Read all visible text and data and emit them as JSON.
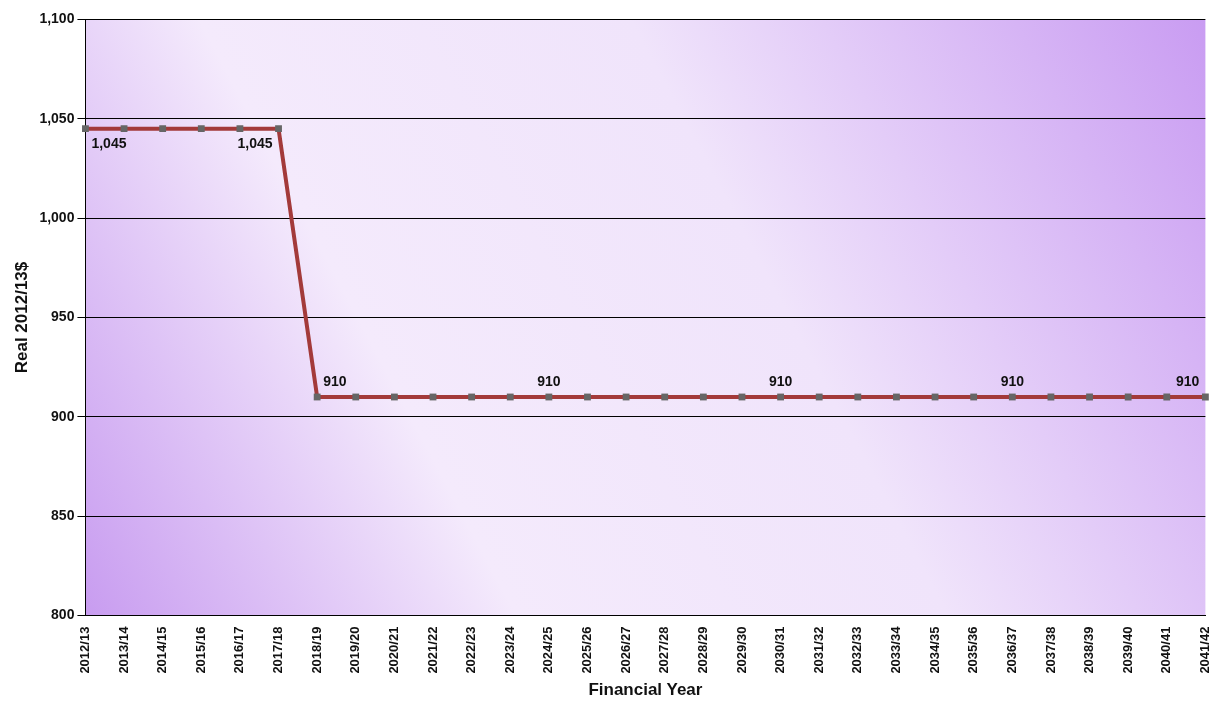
{
  "chart_data": {
    "type": "line",
    "xlabel": "Financial Year",
    "ylabel": "Real 2012/13$",
    "categories": [
      "2012/13",
      "2013/14",
      "2014/15",
      "2015/16",
      "2016/17",
      "2017/18",
      "2018/19",
      "2019/20",
      "2020/21",
      "2021/22",
      "2022/23",
      "2023/24",
      "2024/25",
      "2025/26",
      "2026/27",
      "2027/28",
      "2028/29",
      "2029/30",
      "2030/31",
      "2031/32",
      "2032/33",
      "2033/34",
      "2034/35",
      "2035/36",
      "2036/37",
      "2037/38",
      "2038/39",
      "2039/40",
      "2040/41",
      "2041/42"
    ],
    "series": [
      {
        "color": "#a33a3a",
        "values": [
          1045,
          1045,
          1045,
          1045,
          1045,
          1045,
          910,
          910,
          910,
          910,
          910,
          910,
          910,
          910,
          910,
          910,
          910,
          910,
          910,
          910,
          910,
          910,
          910,
          910,
          910,
          910,
          910,
          910,
          910,
          910
        ],
        "value_labels": [
          "1,045",
          null,
          null,
          null,
          null,
          "1,045",
          "910",
          null,
          null,
          null,
          null,
          null,
          "910",
          null,
          null,
          null,
          null,
          null,
          "910",
          null,
          null,
          null,
          null,
          null,
          "910",
          null,
          null,
          null,
          null,
          "910"
        ]
      }
    ],
    "ylim": [
      800,
      1100
    ],
    "yticks": [
      800,
      850,
      900,
      950,
      {
        "value": 1000,
        "label": "1,000"
      },
      {
        "value": 1050,
        "label": "1,050"
      },
      {
        "value": 1100,
        "label": "1,100"
      }
    ],
    "grid": "y",
    "legend": false,
    "marker": "square",
    "line_style": "solid"
  }
}
